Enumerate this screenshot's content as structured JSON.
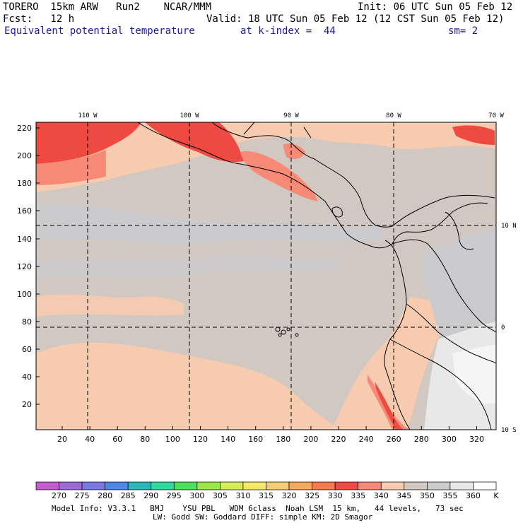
{
  "header": {
    "line1_left": "TORERO  15km ARW   Run2    NCAR/MMM",
    "line1_right": "Init: 06 UTC Sun 05 Feb 12",
    "line2_left": "Fcst:   12 h",
    "line2_right": "Valid: 18 UTC Sun 05 Feb 12 (12 CST Sun 05 Feb 12)",
    "field": "Equivalent potential temperature",
    "level": "at k-index =  44",
    "smoothing": "sm= 2"
  },
  "lon_labels": [
    "110 W",
    "100 W",
    "90 W",
    "80 W",
    "70 W"
  ],
  "lat_labels": [
    "10 N",
    "0",
    "10 S"
  ],
  "y_ticks": [
    "220",
    "200",
    "180",
    "160",
    "140",
    "120",
    "100",
    "80",
    "60",
    "40",
    "20"
  ],
  "x_ticks": [
    "20",
    "40",
    "60",
    "80",
    "100",
    "120",
    "140",
    "160",
    "180",
    "200",
    "220",
    "240",
    "260",
    "280",
    "300",
    "320"
  ],
  "colorbar": {
    "labels": [
      "270",
      "275",
      "280",
      "285",
      "290",
      "295",
      "300",
      "305",
      "310",
      "315",
      "320",
      "325",
      "330",
      "335",
      "340",
      "345",
      "350",
      "355",
      "360"
    ],
    "unit": "K",
    "colors": [
      "#c45ccf",
      "#9b6ad6",
      "#7a78e6",
      "#4d86e8",
      "#2cb6b8",
      "#2ed8a0",
      "#4fe05a",
      "#9be64a",
      "#d6ec5c",
      "#f3e86a",
      "#f6cc72",
      "#f7a85c",
      "#f47c4c",
      "#ee4a42",
      "#f68a76",
      "#f6cbb0",
      "#d2c8c2",
      "#cbcbcd",
      "#e8e8e8",
      "#ffffff"
    ]
  },
  "footer": {
    "line1": "Model Info: V3.3.1   BMJ    YSU PBL   WDM 6class  Noah LSM  15 km,   44 levels,   73 sec",
    "line2": "LW: Godd SW: Goddard DIFF: simple KM: 2D Smagor"
  }
}
